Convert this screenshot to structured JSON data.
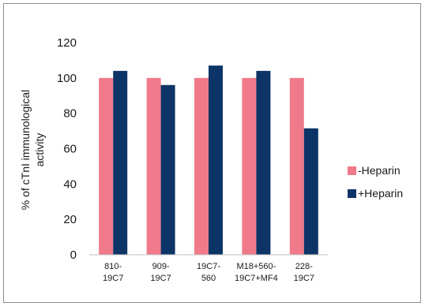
{
  "chart_data": {
    "type": "bar",
    "categories": [
      [
        "810-",
        "19C7"
      ],
      [
        "909-",
        "19C7"
      ],
      [
        "19C7-",
        "560"
      ],
      [
        "M18+560-",
        "19C7+MF4"
      ],
      [
        "228-",
        "19C7"
      ]
    ],
    "series": [
      {
        "name": "-Heparin",
        "color": "#f07a8a",
        "values": [
          100,
          100,
          100,
          100,
          100
        ]
      },
      {
        "name": "+Heparin",
        "color": "#0d3466",
        "values": [
          104,
          96,
          107,
          104,
          71.5
        ]
      }
    ],
    "ylabel_lines": [
      "% of cTnI immunological",
      "activity"
    ],
    "xlabel": "",
    "ylim": [
      0,
      120
    ],
    "yticks": [
      0,
      20,
      40,
      60,
      80,
      100,
      120
    ],
    "grid": false,
    "legend_position": "right"
  }
}
